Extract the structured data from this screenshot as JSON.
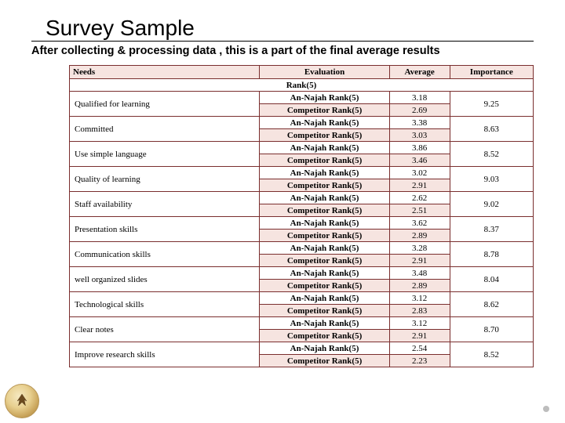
{
  "title": "Survey Sample",
  "subtitle": "After collecting & processing data , this is  a part of the final average results",
  "table": {
    "headers": {
      "needs": "Needs",
      "evaluation": "Evaluation",
      "average": "Average",
      "importance": "Importance"
    },
    "rank_label": "Rank(5)",
    "an_label": "An-Najah Rank(5)",
    "comp_label": "Competitor Rank(5)",
    "rows": [
      {
        "need": "Qualified for learning",
        "an_avg": "3.18",
        "comp_avg": "2.69",
        "importance": "9.25"
      },
      {
        "need": "Committed",
        "an_avg": "3.38",
        "comp_avg": "3.03",
        "importance": "8.63"
      },
      {
        "need": "Use simple language",
        "an_avg": "3.86",
        "comp_avg": "3.46",
        "importance": "8.52"
      },
      {
        "need": "Quality of learning",
        "an_avg": "3.02",
        "comp_avg": "2.91",
        "importance": "9.03"
      },
      {
        "need": "Staff availability",
        "an_avg": "2.62",
        "comp_avg": "2.51",
        "importance": "9.02"
      },
      {
        "need": "Presentation skills",
        "an_avg": "3.62",
        "comp_avg": "2.89",
        "importance": "8.37"
      },
      {
        "need": "Communication skills",
        "an_avg": "3.28",
        "comp_avg": "2.91",
        "importance": "8.78"
      },
      {
        "need": "well organized slides",
        "an_avg": "3.48",
        "comp_avg": "2.89",
        "importance": "8.04"
      },
      {
        "need": "Technological skills",
        "an_avg": "3.12",
        "comp_avg": "2.83",
        "importance": "8.62"
      },
      {
        "need": "Clear notes",
        "an_avg": "3.12",
        "comp_avg": "2.91",
        "importance": "8.70"
      },
      {
        "need": "Improve research skills",
        "an_avg": "2.54",
        "comp_avg": "2.23",
        "importance": "8.52"
      }
    ]
  },
  "colors": {
    "row_shade": "#f6e4e0",
    "border": "#7a2e2e",
    "background": "#ffffff"
  }
}
